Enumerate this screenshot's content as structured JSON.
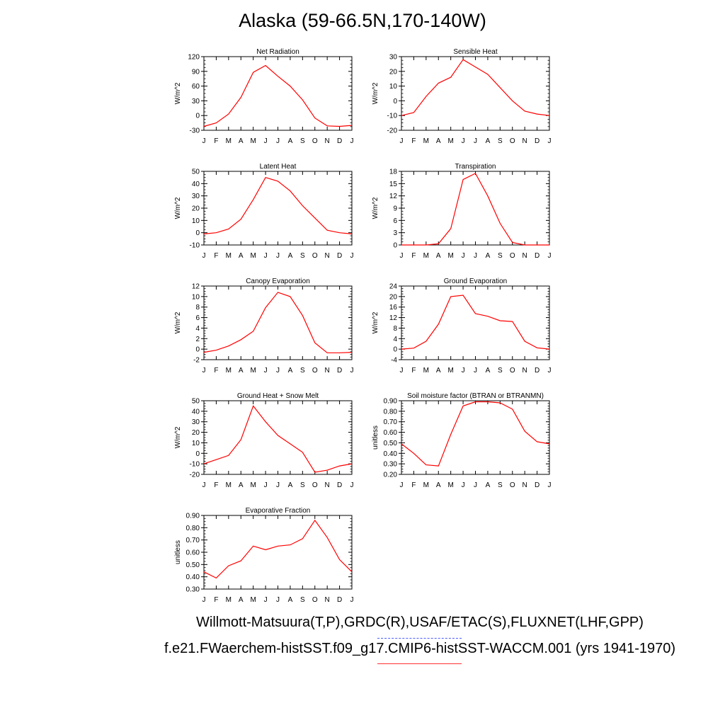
{
  "title": "Alaska (59-66.5N,170-140W)",
  "legend": {
    "observations": "Willmott-Matsuura(T,P),GRDC(R),USAF/ETAC(S),FLUXNET(LHF,GPP)",
    "model": "f.e21.FWaerchem-histSST.f09_g17.CMIP6-histSST-WACCM.001 (yrs 1941-1970)",
    "observations_color": "#4a5cff",
    "model_color": "#ff0000"
  },
  "chart_data": [
    {
      "type": "line",
      "title": "Net Radiation",
      "ylabel": "W/m^2",
      "x": [
        "J",
        "F",
        "M",
        "A",
        "M",
        "J",
        "J",
        "A",
        "S",
        "O",
        "N",
        "D",
        "J"
      ],
      "ylim": [
        -30,
        120
      ],
      "yticks": [
        "-30",
        "0",
        "30",
        "60",
        "90",
        "120"
      ],
      "series": [
        {
          "values": [
            -22,
            -15,
            3,
            37,
            88,
            102,
            80,
            60,
            32,
            -5,
            -21,
            -22,
            -20
          ]
        }
      ]
    },
    {
      "type": "line",
      "title": "Sensible Heat",
      "ylabel": "W/m^2",
      "x": [
        "J",
        "F",
        "M",
        "A",
        "M",
        "J",
        "J",
        "A",
        "S",
        "O",
        "N",
        "D",
        "J"
      ],
      "ylim": [
        -20,
        30
      ],
      "yticks": [
        "-20",
        "-10",
        "0",
        "10",
        "20",
        "30"
      ],
      "series": [
        {
          "values": [
            -10,
            -8,
            3,
            12,
            16,
            28,
            23,
            18,
            9,
            0,
            -7,
            -9,
            -10
          ]
        }
      ]
    },
    {
      "type": "line",
      "title": "Latent Heat",
      "ylabel": "W/m^2",
      "x": [
        "J",
        "F",
        "M",
        "A",
        "M",
        "J",
        "J",
        "A",
        "S",
        "O",
        "N",
        "D",
        "J"
      ],
      "ylim": [
        -10,
        50
      ],
      "yticks": [
        "-10",
        "0",
        "10",
        "20",
        "30",
        "40",
        "50"
      ],
      "series": [
        {
          "values": [
            -1,
            0,
            3,
            11,
            27,
            45,
            42,
            34,
            22,
            12,
            2,
            0,
            -1
          ]
        }
      ]
    },
    {
      "type": "line",
      "title": "Transpiration",
      "ylabel": "W/m^2",
      "x": [
        "J",
        "F",
        "M",
        "A",
        "M",
        "J",
        "J",
        "A",
        "S",
        "O",
        "N",
        "D",
        "J"
      ],
      "ylim": [
        0,
        18
      ],
      "yticks": [
        "0",
        "3",
        "6",
        "9",
        "12",
        "15",
        "18"
      ],
      "series": [
        {
          "values": [
            0,
            0,
            0,
            0.3,
            4,
            16,
            17.5,
            12,
            5.3,
            0.6,
            0,
            0,
            0
          ]
        }
      ]
    },
    {
      "type": "line",
      "title": "Canopy Evaporation",
      "ylabel": "W/m^2",
      "x": [
        "J",
        "F",
        "M",
        "A",
        "M",
        "J",
        "J",
        "A",
        "S",
        "O",
        "N",
        "D",
        "J"
      ],
      "ylim": [
        -2,
        12
      ],
      "yticks": [
        "-2",
        "0",
        "2",
        "4",
        "6",
        "8",
        "10",
        "12"
      ],
      "series": [
        {
          "values": [
            -0.6,
            -0.2,
            0.6,
            1.8,
            3.4,
            7.9,
            10.8,
            10.0,
            6.4,
            1.2,
            -0.7,
            -0.7,
            -0.6
          ]
        }
      ]
    },
    {
      "type": "line",
      "title": "Ground Evaporation",
      "ylabel": "W/m^2",
      "x": [
        "J",
        "F",
        "M",
        "A",
        "M",
        "J",
        "J",
        "A",
        "S",
        "O",
        "N",
        "D",
        "J"
      ],
      "ylim": [
        -4,
        24
      ],
      "yticks": [
        "-4",
        "0",
        "4",
        "8",
        "12",
        "16",
        "20",
        "24"
      ],
      "series": [
        {
          "values": [
            0,
            0.4,
            3,
            9.5,
            20,
            20.5,
            13.5,
            12.5,
            10.8,
            10.5,
            3,
            0.5,
            0
          ]
        }
      ]
    },
    {
      "type": "line",
      "title": "Ground Heat + Snow Melt",
      "ylabel": "W/m^2",
      "x": [
        "J",
        "F",
        "M",
        "A",
        "M",
        "J",
        "J",
        "A",
        "S",
        "O",
        "N",
        "D",
        "J"
      ],
      "ylim": [
        -20,
        50
      ],
      "yticks": [
        "-20",
        "-10",
        "0",
        "10",
        "20",
        "30",
        "40",
        "50"
      ],
      "series": [
        {
          "values": [
            -10,
            -6,
            -2,
            13,
            45,
            30,
            17,
            9,
            1,
            -18,
            -16,
            -12,
            -10
          ]
        }
      ]
    },
    {
      "type": "line",
      "title": "Soil moisture factor (BTRAN or BTRANMN)",
      "ylabel": "unitless",
      "x": [
        "J",
        "F",
        "M",
        "A",
        "M",
        "J",
        "J",
        "A",
        "S",
        "O",
        "N",
        "D",
        "J"
      ],
      "ylim": [
        0.2,
        0.9
      ],
      "yticks": [
        "0.20",
        "0.30",
        "0.40",
        "0.50",
        "0.60",
        "0.70",
        "0.80",
        "0.90"
      ],
      "series": [
        {
          "values": [
            0.49,
            0.4,
            0.29,
            0.28,
            0.58,
            0.85,
            0.89,
            0.89,
            0.88,
            0.82,
            0.61,
            0.51,
            0.49
          ]
        }
      ]
    },
    {
      "type": "line",
      "title": "Evaporative Fraction",
      "ylabel": "unitless",
      "x": [
        "J",
        "F",
        "M",
        "A",
        "M",
        "J",
        "J",
        "A",
        "S",
        "O",
        "N",
        "D",
        "J"
      ],
      "ylim": [
        0.3,
        0.9
      ],
      "yticks": [
        "0.30",
        "0.40",
        "0.50",
        "0.60",
        "0.70",
        "0.80",
        "0.90"
      ],
      "series": [
        {
          "values": [
            0.44,
            0.39,
            0.49,
            0.53,
            0.65,
            0.62,
            0.65,
            0.66,
            0.71,
            0.86,
            0.72,
            0.54,
            0.44
          ]
        }
      ]
    }
  ]
}
